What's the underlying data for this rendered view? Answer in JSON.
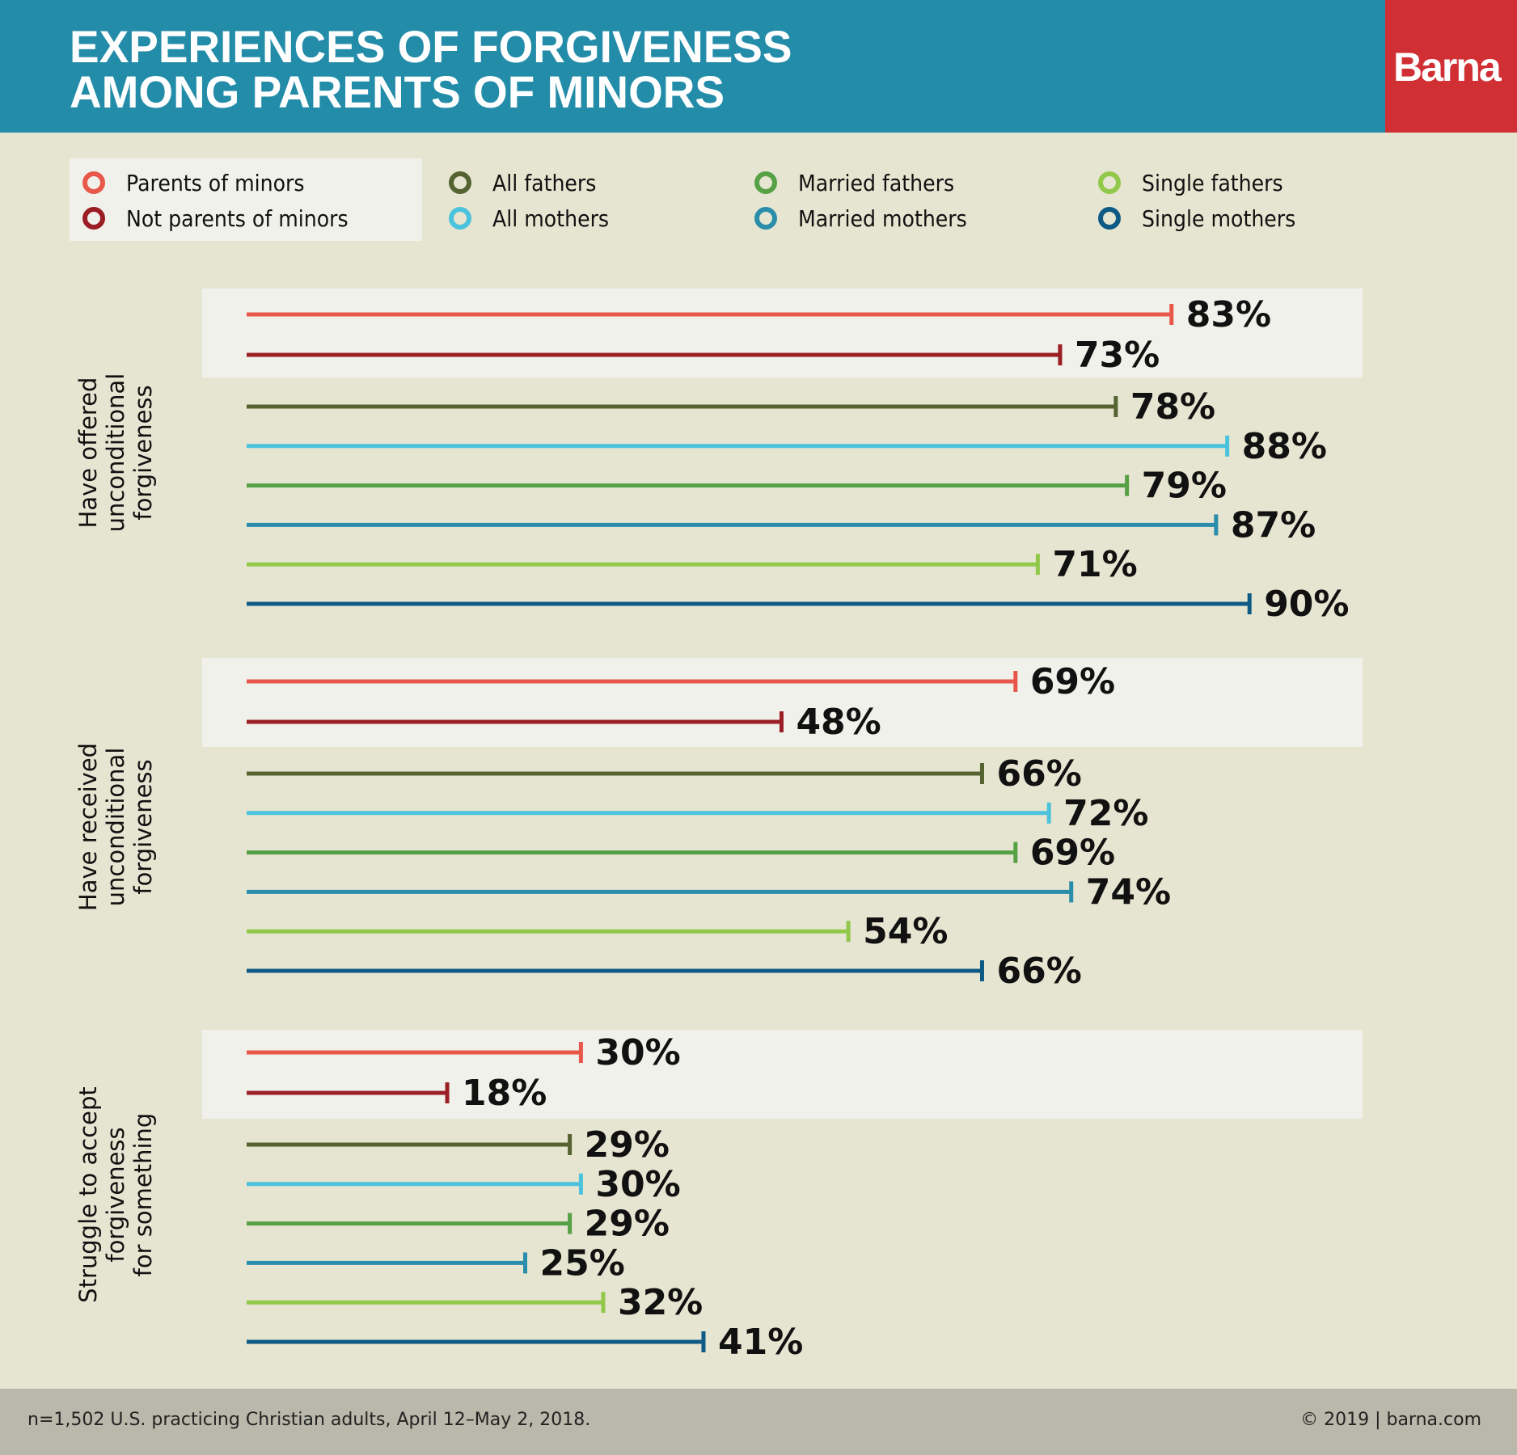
{
  "header": {
    "title_lines": [
      "EXPERIENCES OF FORGIVENESS",
      "AMONG PARENTS OF MINORS"
    ],
    "logo": "Barna",
    "colors": {
      "header_bg": "#238ca9",
      "logo_bg": "#d03034"
    }
  },
  "legend": [
    {
      "label": "Parents of minors",
      "color": "#e8584a"
    },
    {
      "label": "Not parents of minors",
      "color": "#9a1e24"
    },
    {
      "label": "All fathers",
      "color": "#556330"
    },
    {
      "label": "All mothers",
      "color": "#4cc3dc"
    },
    {
      "label": "Married fathers",
      "color": "#56a046"
    },
    {
      "label": "Married mothers",
      "color": "#2a8dab"
    },
    {
      "label": "Single fathers",
      "color": "#92c84a"
    },
    {
      "label": "Single mothers",
      "color": "#0e5a85"
    }
  ],
  "chart_data": {
    "type": "bar",
    "orientation": "horizontal",
    "title": "EXPERIENCES OF FORGIVENESS AMONG PARENTS OF MINORS",
    "unit": "%",
    "xlim": [
      0,
      100
    ],
    "grid": false,
    "legend_position": "top",
    "categories": [
      "Have offered unconditional forgiveness",
      "Have received unconditional forgiveness",
      "Struggle to accept forgiveness for something"
    ],
    "series": [
      {
        "name": "Parents of minors",
        "color": "#e8584a",
        "values": [
          83,
          69,
          30
        ]
      },
      {
        "name": "Not parents of minors",
        "color": "#9a1e24",
        "values": [
          73,
          48,
          18
        ]
      },
      {
        "name": "All fathers",
        "color": "#556330",
        "values": [
          78,
          66,
          29
        ]
      },
      {
        "name": "All mothers",
        "color": "#4cc3dc",
        "values": [
          88,
          72,
          30
        ]
      },
      {
        "name": "Married fathers",
        "color": "#56a046",
        "values": [
          79,
          69,
          29
        ]
      },
      {
        "name": "Married mothers",
        "color": "#2a8dab",
        "values": [
          87,
          74,
          25
        ]
      },
      {
        "name": "Single fathers",
        "color": "#92c84a",
        "values": [
          71,
          54,
          32
        ]
      },
      {
        "name": "Single mothers",
        "color": "#0e5a85",
        "values": [
          90,
          66,
          41
        ]
      }
    ],
    "group_labels_lines": [
      [
        "Have offered",
        "unconditional",
        "forgiveness"
      ],
      [
        "Have received",
        "unconditional",
        "forgiveness"
      ],
      [
        "Struggle to accept",
        "forgiveness",
        "for something"
      ]
    ]
  },
  "footer": {
    "note": "n=1,502 U.S. practicing Christian adults, April 12–May 2, 2018.",
    "copyright": "© 2019 | barna.com"
  }
}
